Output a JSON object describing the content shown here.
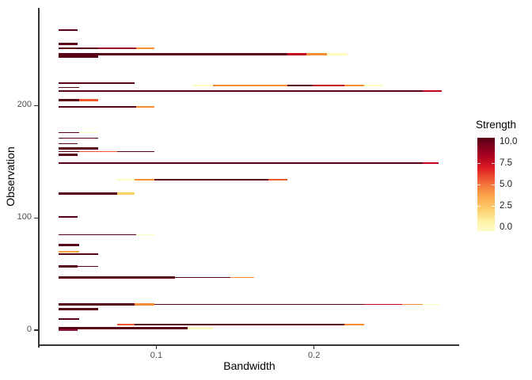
{
  "chart_data": {
    "type": "segment-path",
    "title": "",
    "xlabel": "Bandwidth",
    "ylabel": "Observation",
    "grid": "off",
    "xlim": [
      0.026,
      0.292
    ],
    "ylim": [
      -14,
      287
    ],
    "x_ticks": [
      {
        "v": 0.1,
        "label": "0.1"
      },
      {
        "v": 0.2,
        "label": "0.2"
      }
    ],
    "y_ticks": [
      {
        "v": 0,
        "label": "0"
      },
      {
        "v": 100,
        "label": "100"
      },
      {
        "v": 200,
        "label": "200"
      }
    ],
    "legend": {
      "title": "Strength",
      "position": "right",
      "labels": [
        "10.0",
        "7.5",
        "5.0",
        "2.5",
        "0.0"
      ],
      "values": [
        10,
        7.5,
        5,
        2.5,
        0
      ],
      "tick_values": [
        7.5,
        5,
        2.5
      ],
      "gradient": [
        {
          "color": "#570016",
          "pos": 0
        },
        {
          "color": "#A50021",
          "pos": 18
        },
        {
          "color": "#DD1A22",
          "pos": 32
        },
        {
          "color": "#F4753C",
          "pos": 50
        },
        {
          "color": "#FCA54A",
          "pos": 62
        },
        {
          "color": "#FDD172",
          "pos": 78
        },
        {
          "color": "#FFF3A8",
          "pos": 90
        },
        {
          "color": "#FFFCC6",
          "pos": 100
        }
      ]
    },
    "palette": {
      "dark": "#570016",
      "maroonmid": "#9B0D28",
      "red": "#C10321",
      "orangered": "#F1582B",
      "orange": "#F78E34",
      "goldorange": "#F3A13C",
      "gold": "#FBD267",
      "yellow": "#FFFCC2",
      "fade": "#8B1A3C"
    },
    "rows": [
      {
        "obs": 267,
        "segments": [
          {
            "x1": 0.038,
            "x2": 0.05,
            "c": "dark",
            "w": 2
          }
        ]
      },
      {
        "obs": 255,
        "segments": [
          {
            "x1": 0.038,
            "x2": 0.05,
            "c": "dark",
            "w": 3
          }
        ]
      },
      {
        "obs": 251,
        "segments": [
          {
            "x1": 0.038,
            "x2": 0.063,
            "c": "dark",
            "w": 1.5
          },
          {
            "x1": 0.063,
            "x2": 0.087,
            "c": "maroonmid",
            "w": 1.5
          },
          {
            "x1": 0.087,
            "x2": 0.099,
            "c": "orange",
            "w": 1.5
          }
        ]
      },
      {
        "obs": 246,
        "segments": [
          {
            "x1": 0.038,
            "x2": 0.183,
            "c": "dark",
            "w": 3
          },
          {
            "x1": 0.183,
            "x2": 0.195,
            "c": "red",
            "w": 3
          },
          {
            "x1": 0.195,
            "x2": 0.208,
            "c": "orange",
            "w": 3
          },
          {
            "x1": 0.208,
            "x2": 0.221,
            "c": "yellow",
            "w": 3
          }
        ]
      },
      {
        "obs": 244,
        "segments": [
          {
            "x1": 0.038,
            "x2": 0.063,
            "c": "dark",
            "w": 3
          }
        ]
      },
      {
        "obs": 220,
        "segments": [
          {
            "x1": 0.038,
            "x2": 0.086,
            "c": "dark",
            "w": 1.5
          }
        ]
      },
      {
        "obs": 218,
        "segments": [
          {
            "x1": 0.123,
            "x2": 0.136,
            "c": "yellow",
            "w": 1.5
          },
          {
            "x1": 0.136,
            "x2": 0.183,
            "c": "orange",
            "w": 1.5
          },
          {
            "x1": 0.183,
            "x2": 0.199,
            "c": "dark",
            "w": 1.5
          },
          {
            "x1": 0.199,
            "x2": 0.219,
            "c": "red",
            "w": 1.5
          },
          {
            "x1": 0.219,
            "x2": 0.232,
            "c": "orange",
            "w": 1.5
          },
          {
            "x1": 0.232,
            "x2": 0.244,
            "c": "yellow",
            "w": 1.5
          }
        ]
      },
      {
        "obs": 216,
        "segments": [
          {
            "x1": 0.038,
            "x2": 0.051,
            "c": "dark",
            "w": 1.5
          }
        ]
      },
      {
        "obs": 213,
        "segments": [
          {
            "x1": 0.038,
            "x2": 0.269,
            "c": "dark",
            "w": 1.5
          },
          {
            "x1": 0.269,
            "x2": 0.281,
            "c": "red",
            "w": 1.5
          }
        ]
      },
      {
        "obs": 205,
        "segments": [
          {
            "x1": 0.038,
            "x2": 0.051,
            "c": "dark",
            "w": 3
          },
          {
            "x1": 0.051,
            "x2": 0.063,
            "c": "orangered",
            "w": 3
          }
        ]
      },
      {
        "obs": 199,
        "segments": [
          {
            "x1": 0.038,
            "x2": 0.087,
            "c": "dark",
            "w": 1.5
          },
          {
            "x1": 0.087,
            "x2": 0.099,
            "c": "orange",
            "w": 1.5
          }
        ]
      },
      {
        "obs": 176,
        "segments": [
          {
            "x1": 0.038,
            "x2": 0.051,
            "c": "dark",
            "w": 1.5
          },
          {
            "x1": 0.051,
            "x2": 0.063,
            "c": "yellow",
            "w": 1.5
          }
        ]
      },
      {
        "obs": 171,
        "segments": [
          {
            "x1": 0.038,
            "x2": 0.063,
            "c": "dark",
            "w": 1.5
          }
        ]
      },
      {
        "obs": 166,
        "segments": [
          {
            "x1": 0.038,
            "x2": 0.05,
            "c": "dark",
            "w": 1.5
          }
        ]
      },
      {
        "obs": 162,
        "segments": [
          {
            "x1": 0.038,
            "x2": 0.063,
            "c": "dark",
            "w": 3
          }
        ]
      },
      {
        "obs": 159,
        "segments": [
          {
            "x1": 0.038,
            "x2": 0.051,
            "c": "dark",
            "w": 1.5
          },
          {
            "x1": 0.051,
            "x2": 0.075,
            "c": "orangered",
            "w": 1.5
          },
          {
            "x1": 0.075,
            "x2": 0.099,
            "c": "dark",
            "w": 1.5
          }
        ]
      },
      {
        "obs": 156,
        "segments": [
          {
            "x1": 0.038,
            "x2": 0.05,
            "c": "dark",
            "w": 3
          }
        ]
      },
      {
        "obs": 149,
        "segments": [
          {
            "x1": 0.038,
            "x2": 0.269,
            "c": "dark",
            "w": 1.5
          },
          {
            "x1": 0.269,
            "x2": 0.279,
            "c": "red",
            "w": 1.5
          }
        ]
      },
      {
        "obs": 134,
        "segments": [
          {
            "x1": 0.075,
            "x2": 0.086,
            "c": "yellow",
            "w": 1.5
          },
          {
            "x1": 0.086,
            "x2": 0.099,
            "c": "orange",
            "w": 1.5
          },
          {
            "x1": 0.099,
            "x2": 0.171,
            "c": "dark",
            "w": 1.5
          },
          {
            "x1": 0.171,
            "x2": 0.183,
            "c": "orangered",
            "w": 1.5
          }
        ]
      },
      {
        "obs": 122,
        "segments": [
          {
            "x1": 0.038,
            "x2": 0.075,
            "c": "dark",
            "w": 3
          },
          {
            "x1": 0.075,
            "x2": 0.086,
            "c": "gold",
            "w": 3
          }
        ]
      },
      {
        "obs": 101,
        "segments": [
          {
            "x1": 0.038,
            "x2": 0.05,
            "c": "dark",
            "w": 1.5
          }
        ]
      },
      {
        "obs": 85,
        "segments": [
          {
            "x1": 0.038,
            "x2": 0.087,
            "c": "dark",
            "w": 1.5
          },
          {
            "x1": 0.087,
            "x2": 0.099,
            "c": "yellow",
            "w": 1.5
          }
        ]
      },
      {
        "obs": 76,
        "segments": [
          {
            "x1": 0.038,
            "x2": 0.051,
            "c": "dark",
            "w": 3
          }
        ]
      },
      {
        "obs": 70,
        "segments": [
          {
            "x1": 0.038,
            "x2": 0.051,
            "c": "goldorange",
            "w": 1.5
          }
        ]
      },
      {
        "obs": 68,
        "segments": [
          {
            "x1": 0.038,
            "x2": 0.063,
            "c": "dark",
            "w": 2
          }
        ]
      },
      {
        "obs": 57,
        "segments": [
          {
            "x1": 0.038,
            "x2": 0.05,
            "c": "dark",
            "w": 3
          },
          {
            "x1": 0.05,
            "x2": 0.063,
            "c": "dark",
            "w": 1.5
          }
        ]
      },
      {
        "obs": 47,
        "segments": [
          {
            "x1": 0.038,
            "x2": 0.112,
            "c": "dark",
            "w": 3
          },
          {
            "x1": 0.112,
            "x2": 0.147,
            "c": "dark",
            "w": 1.5
          },
          {
            "x1": 0.147,
            "x2": 0.162,
            "c": "orange",
            "w": 1.5
          }
        ]
      },
      {
        "obs": 23,
        "segments": [
          {
            "x1": 0.038,
            "x2": 0.086,
            "c": "dark",
            "w": 3
          },
          {
            "x1": 0.086,
            "x2": 0.099,
            "c": "orange",
            "w": 3
          },
          {
            "x1": 0.099,
            "x2": 0.232,
            "c": "dark",
            "w": 1.5
          },
          {
            "x1": 0.232,
            "x2": 0.256,
            "c": "red",
            "w": 1.5
          },
          {
            "x1": 0.256,
            "x2": 0.269,
            "c": "orange",
            "w": 1.5
          },
          {
            "x1": 0.269,
            "x2": 0.28,
            "c": "yellow",
            "w": 1.5
          }
        ]
      },
      {
        "obs": 19,
        "segments": [
          {
            "x1": 0.038,
            "x2": 0.063,
            "c": "dark",
            "w": 3
          }
        ]
      },
      {
        "obs": 10,
        "segments": [
          {
            "x1": 0.038,
            "x2": 0.051,
            "c": "dark",
            "w": 1.5
          }
        ]
      },
      {
        "obs": 5,
        "segments": [
          {
            "x1": 0.075,
            "x2": 0.086,
            "c": "orangered",
            "w": 1.5
          },
          {
            "x1": 0.086,
            "x2": 0.219,
            "c": "dark",
            "w": 1.5
          },
          {
            "x1": 0.219,
            "x2": 0.232,
            "c": "orange",
            "w": 1.5
          }
        ]
      },
      {
        "obs": 2,
        "segments": [
          {
            "x1": 0.038,
            "x2": 0.12,
            "c": "dark",
            "w": 3
          },
          {
            "x1": 0.12,
            "x2": 0.136,
            "c": "yellow",
            "w": 3
          }
        ]
      },
      {
        "obs": 0,
        "segments": [
          {
            "x1": 0.038,
            "x2": 0.05,
            "c": "fade",
            "w": 2
          }
        ]
      }
    ]
  }
}
